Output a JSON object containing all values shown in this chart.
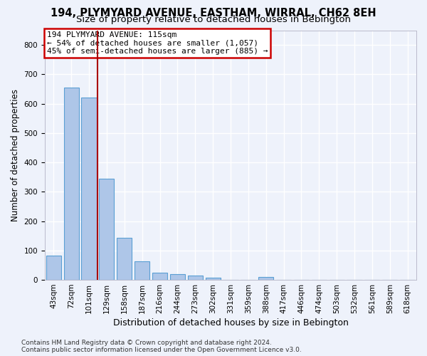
{
  "title": "194, PLYMYARD AVENUE, EASTHAM, WIRRAL, CH62 8EH",
  "subtitle": "Size of property relative to detached houses in Bebington",
  "xlabel": "Distribution of detached houses by size in Bebington",
  "ylabel": "Number of detached properties",
  "categories": [
    "43sqm",
    "72sqm",
    "101sqm",
    "129sqm",
    "158sqm",
    "187sqm",
    "216sqm",
    "244sqm",
    "273sqm",
    "302sqm",
    "331sqm",
    "359sqm",
    "388sqm",
    "417sqm",
    "446sqm",
    "474sqm",
    "503sqm",
    "532sqm",
    "561sqm",
    "589sqm",
    "618sqm"
  ],
  "values": [
    83,
    655,
    620,
    345,
    143,
    62,
    25,
    19,
    14,
    7,
    0,
    0,
    11,
    0,
    0,
    0,
    0,
    0,
    0,
    0,
    0
  ],
  "bar_color": "#aec6e8",
  "bar_edge_color": "#5a9fd4",
  "background_color": "#eef2fb",
  "grid_color": "#ffffff",
  "vline_x": 2.5,
  "vline_color": "#aa0000",
  "annotation_line1": "194 PLYMYARD AVENUE: 115sqm",
  "annotation_line2": "← 54% of detached houses are smaller (1,057)",
  "annotation_line3": "45% of semi-detached houses are larger (885) →",
  "annotation_box_color": "#ffffff",
  "annotation_box_edge_color": "#cc0000",
  "footer": "Contains HM Land Registry data © Crown copyright and database right 2024.\nContains public sector information licensed under the Open Government Licence v3.0.",
  "ylim": [
    0,
    850
  ],
  "yticks": [
    0,
    100,
    200,
    300,
    400,
    500,
    600,
    700,
    800
  ],
  "title_fontsize": 10.5,
  "subtitle_fontsize": 9.5,
  "xlabel_fontsize": 9,
  "ylabel_fontsize": 8.5,
  "tick_fontsize": 7.5,
  "annot_fontsize": 8,
  "footer_fontsize": 6.5
}
